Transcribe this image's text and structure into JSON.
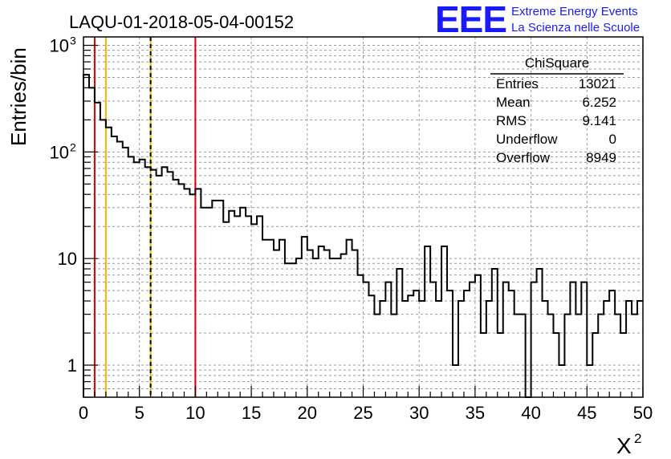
{
  "header": {
    "run_title": "LAQU-01-2018-05-04-00152",
    "logo_text": "EEE",
    "logo_line1": "Extreme Energy Events",
    "logo_line2": "La Scienza nelle Scuole"
  },
  "stats_box": {
    "title": "ChiSquare",
    "rows": [
      {
        "label": "Entries",
        "value": "13021"
      },
      {
        "label": "Mean",
        "value": "6.252"
      },
      {
        "label": "RMS",
        "value": "9.141"
      },
      {
        "label": "Underflow",
        "value": "0"
      },
      {
        "label": "Overflow",
        "value": "8949"
      }
    ]
  },
  "colors": {
    "histogram": "#000000",
    "red_line": "#dd0000",
    "yellow_line": "#f0b400",
    "logo_blue": "#1a1aff",
    "grid": "#999999"
  },
  "chart_data": {
    "type": "histogram",
    "title": "LAQU-01-2018-05-04-00152",
    "xlabel": "X",
    "xlabel_superscript": "2",
    "ylabel": "Entries/bin",
    "xlim": [
      0,
      50
    ],
    "ylim": [
      0.5,
      1200
    ],
    "yscale": "log",
    "grid": true,
    "bin_width": 0.5,
    "x_ticks": [
      "0",
      "5",
      "10",
      "15",
      "20",
      "25",
      "30",
      "35",
      "40",
      "45",
      "50"
    ],
    "y_ticks": [
      {
        "value": 1,
        "base": "1",
        "exp": ""
      },
      {
        "value": 10,
        "base": "10",
        "exp": ""
      },
      {
        "value": 100,
        "base": "10",
        "exp": "2"
      },
      {
        "value": 1000,
        "base": "10",
        "exp": "3"
      }
    ],
    "values": [
      530,
      400,
      290,
      200,
      170,
      140,
      125,
      110,
      90,
      80,
      85,
      72,
      68,
      60,
      72,
      65,
      55,
      50,
      45,
      40,
      45,
      30,
      30,
      35,
      35,
      22,
      28,
      25,
      30,
      25,
      21,
      25,
      15,
      15,
      12,
      15,
      9,
      9,
      10,
      16,
      12,
      10,
      13,
      12,
      10,
      10,
      11,
      15,
      12,
      7,
      6,
      4.5,
      3,
      4,
      6,
      3,
      8,
      4,
      4.5,
      5,
      4,
      13,
      6,
      4,
      13,
      5,
      1,
      4,
      5,
      6,
      7,
      2,
      4,
      8,
      2,
      6,
      5,
      3,
      3,
      0,
      6,
      8,
      4,
      3,
      2,
      1,
      3,
      6,
      3,
      6,
      1,
      2,
      3,
      4,
      5,
      3,
      2,
      4,
      3,
      4
    ],
    "vertical_lines": [
      {
        "x": 1,
        "color": "red",
        "style": "solid"
      },
      {
        "x": 2,
        "color": "yellow",
        "style": "solid"
      },
      {
        "x": 6,
        "color": "yellow",
        "style": "solid"
      },
      {
        "x": 6,
        "color": "black",
        "style": "dashed"
      },
      {
        "x": 10,
        "color": "red",
        "style": "solid"
      }
    ]
  }
}
